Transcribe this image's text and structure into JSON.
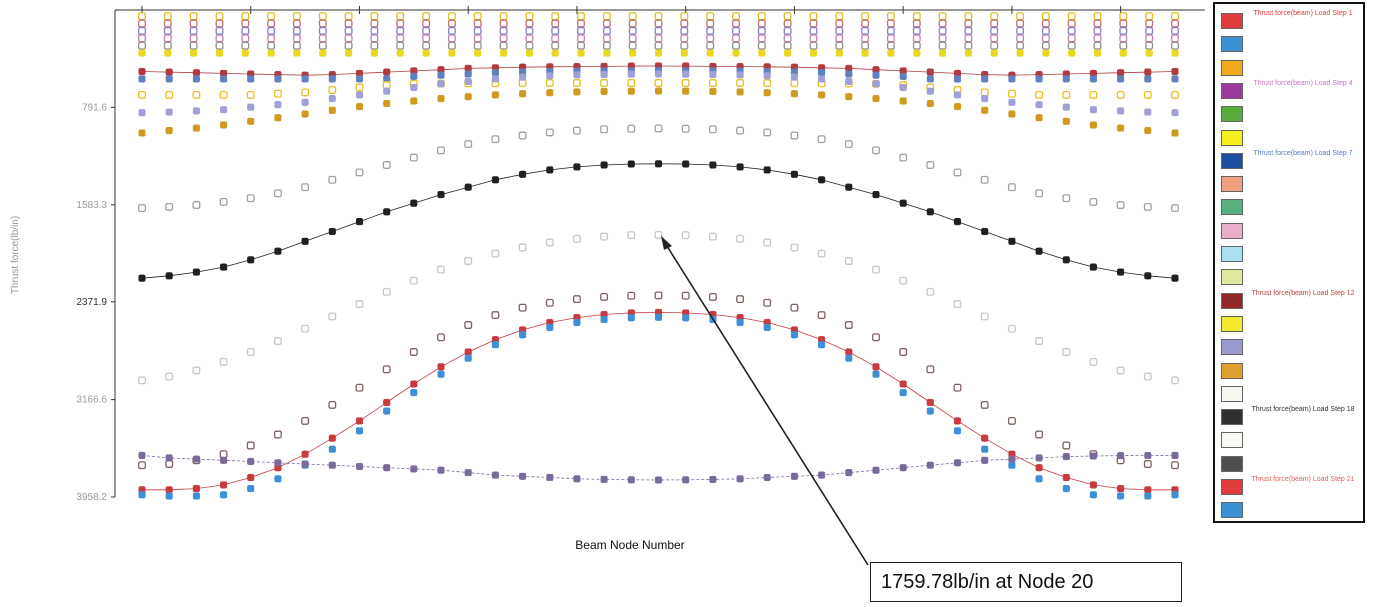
{
  "chart_data": {
    "type": "scatter",
    "title": "",
    "xlabel": "Beam Node Number",
    "ylabel": "Thrust force(lb/in)",
    "x_range": [
      1,
      39
    ],
    "y_range": [
      0,
      3958.2
    ],
    "y_inverted": true,
    "yticks": [
      "791.6",
      "1583.3",
      "2371.9",
      "3166.6",
      "3958.2"
    ],
    "ytick_values": [
      791.6,
      1583.3,
      2371.9,
      3166.6,
      3958.2
    ],
    "xtick_marks": [
      1,
      5,
      9,
      13,
      17,
      21,
      25,
      29,
      33,
      37
    ],
    "grid": false,
    "legend_placement": "right",
    "annotation": {
      "text": "1759.78lb/in at Node 20",
      "node": 20,
      "value": 1759.78
    },
    "legend": [
      {
        "label": "Thrust force(beam) Load Step 1",
        "color": "#e03a3e",
        "text_color": "#e03a3e"
      },
      {
        "label": "",
        "color": "#3d8fd6",
        "text_color": "#7ab6e8"
      },
      {
        "label": "",
        "color": "#f2a81d",
        "text_color": "#f2c060"
      },
      {
        "label": "Thrust force(beam) Load Step 4",
        "color": "#9c3a9c",
        "text_color": "#d070c8"
      },
      {
        "label": "",
        "color": "#5aaa3c",
        "text_color": "#a0d080"
      },
      {
        "label": "",
        "color": "#f5f020",
        "text_color": "#e0d840"
      },
      {
        "label": "Thrust force(beam) Load Step 7",
        "color": "#1d4ea0",
        "text_color": "#5a7ac8"
      },
      {
        "label": "",
        "color": "#f0a080",
        "text_color": "#f0c0b0"
      },
      {
        "label": "",
        "color": "#58b080",
        "text_color": "#a0d0b0"
      },
      {
        "label": "",
        "color": "#e8b0c8",
        "text_color": "#e8c0d0"
      },
      {
        "label": "",
        "color": "#a8e0f0",
        "text_color": "#c0e8f0"
      },
      {
        "label": "",
        "color": "#e0e8a0",
        "text_color": "#e0e0a0"
      },
      {
        "label": "Thrust force(beam) Load Step 12",
        "color": "#902828",
        "text_color": "#c04040"
      },
      {
        "label": "",
        "color": "#f5e830",
        "text_color": "#e8d850"
      },
      {
        "label": "",
        "color": "#9a9ad0",
        "text_color": "#b0b0d8"
      },
      {
        "label": "",
        "color": "#e0a030",
        "text_color": "#e8b860"
      },
      {
        "label": "",
        "color": "#f8f8f0",
        "text_color": "#d0d0c8"
      },
      {
        "label": "Thrust force(beam) Load Step 18",
        "color": "#303030",
        "text_color": "#303030"
      },
      {
        "label": "",
        "color": "#fafaf4",
        "text_color": "#d0d0c8"
      },
      {
        "label": "",
        "color": "#505050",
        "text_color": "#909090"
      },
      {
        "label": "Thrust force(beam) Load Step 21",
        "color": "#e03a3e",
        "text_color": "#e06060"
      },
      {
        "label": "",
        "color": "#3d8fd6",
        "text_color": "#7ab6e8"
      }
    ],
    "series": [
      {
        "color": "#d8c020",
        "filled": false,
        "line": false,
        "values": [
          50,
          50,
          50,
          50,
          50,
          50,
          50,
          50,
          50,
          50,
          50,
          50,
          50,
          50,
          50,
          50,
          50,
          50,
          50,
          50,
          50,
          50,
          50,
          50,
          50,
          50,
          50,
          50,
          50,
          50,
          50,
          50,
          50,
          50,
          50,
          50,
          50,
          50,
          50,
          50,
          50
        ]
      },
      {
        "color": "#c87070",
        "filled": false,
        "line": false,
        "values": [
          110,
          110,
          110,
          110,
          110,
          110,
          110,
          110,
          110,
          110,
          110,
          110,
          110,
          110,
          110,
          110,
          110,
          110,
          110,
          110,
          110,
          110,
          110,
          110,
          110,
          110,
          110,
          110,
          110,
          110,
          110,
          110,
          110,
          110,
          110,
          110,
          110,
          110,
          110,
          110,
          110
        ]
      },
      {
        "color": "#8080c8",
        "filled": false,
        "line": false,
        "values": [
          170,
          170,
          170,
          170,
          170,
          170,
          170,
          170,
          170,
          170,
          170,
          170,
          170,
          170,
          170,
          170,
          170,
          170,
          170,
          170,
          170,
          170,
          170,
          170,
          170,
          170,
          170,
          170,
          170,
          170,
          170,
          170,
          170,
          170,
          170,
          170,
          170,
          170,
          170,
          170,
          170
        ]
      },
      {
        "color": "#c080b0",
        "filled": false,
        "line": false,
        "values": [
          230,
          230,
          230,
          230,
          230,
          230,
          230,
          230,
          230,
          230,
          230,
          230,
          230,
          230,
          230,
          230,
          230,
          230,
          230,
          230,
          230,
          230,
          230,
          230,
          230,
          230,
          230,
          230,
          230,
          230,
          230,
          230,
          230,
          230,
          230,
          230,
          230,
          230,
          230,
          230,
          230
        ]
      },
      {
        "color": "#909090",
        "filled": false,
        "line": false,
        "values": [
          290,
          290,
          290,
          290,
          290,
          290,
          290,
          290,
          290,
          290,
          290,
          290,
          290,
          290,
          290,
          290,
          290,
          290,
          290,
          290,
          290,
          290,
          290,
          290,
          290,
          290,
          290,
          290,
          290,
          290,
          290,
          290,
          290,
          290,
          290,
          290,
          290,
          290,
          290,
          290,
          290
        ]
      },
      {
        "color": "#e8d820",
        "filled": true,
        "line": false,
        "values": [
          350,
          350,
          350,
          350,
          350,
          350,
          350,
          350,
          350,
          350,
          350,
          350,
          350,
          350,
          350,
          350,
          350,
          350,
          350,
          350,
          350,
          350,
          350,
          350,
          350,
          350,
          350,
          350,
          350,
          350,
          350,
          350,
          350,
          350,
          350,
          350,
          350,
          350,
          350,
          350,
          350
        ]
      },
      {
        "color": "#b03a3e",
        "filled": true,
        "line": true,
        "values": [
          500,
          505,
          510,
          515,
          520,
          525,
          530,
          525,
          515,
          505,
          495,
          485,
          475,
          470,
          465,
          462,
          460,
          458,
          456,
          455,
          456,
          458,
          460,
          462,
          465,
          470,
          475,
          485,
          495,
          505,
          515,
          525,
          530,
          525,
          520,
          515,
          510,
          505,
          500
        ]
      },
      {
        "color": "#6080c0",
        "filled": true,
        "line": false,
        "values": [
          560,
          560,
          560,
          560,
          560,
          560,
          560,
          560,
          560,
          560,
          540,
          530,
          520,
          510,
          505,
          500,
          498,
          496,
          495,
          494,
          495,
          496,
          498,
          500,
          505,
          510,
          520,
          530,
          540,
          560,
          560,
          560,
          560,
          560,
          560,
          560,
          560,
          560,
          560
        ]
      },
      {
        "color": "#e8c020",
        "filled": false,
        "line": false,
        "values": [
          690,
          690,
          690,
          690,
          690,
          680,
          670,
          650,
          630,
          610,
          600,
          598,
          596,
          595,
          594,
          593,
          593,
          593,
          593,
          593,
          593,
          593,
          593,
          594,
          595,
          596,
          598,
          600,
          610,
          630,
          650,
          670,
          680,
          690,
          690,
          690,
          690,
          690,
          690
        ]
      },
      {
        "color": "#a0a0d8",
        "filled": true,
        "line": false,
        "values": [
          835,
          830,
          820,
          810,
          790,
          770,
          750,
          720,
          690,
          660,
          630,
          600,
          580,
          560,
          545,
          535,
          528,
          524,
          522,
          520,
          522,
          524,
          528,
          535,
          545,
          560,
          580,
          600,
          630,
          660,
          690,
          720,
          750,
          770,
          790,
          810,
          820,
          830,
          835
        ]
      },
      {
        "color": "#d09a20",
        "filled": true,
        "line": false,
        "values": [
          1000,
          980,
          960,
          935,
          905,
          875,
          845,
          815,
          785,
          760,
          740,
          720,
          705,
          690,
          680,
          672,
          666,
          662,
          660,
          658,
          660,
          662,
          666,
          672,
          680,
          690,
          705,
          720,
          740,
          760,
          785,
          815,
          845,
          875,
          905,
          935,
          960,
          980,
          1000
        ]
      },
      {
        "color": "#a0a0a0",
        "filled": false,
        "line": false,
        "values": [
          1610,
          1600,
          1585,
          1560,
          1530,
          1490,
          1440,
          1380,
          1320,
          1260,
          1200,
          1140,
          1090,
          1050,
          1020,
          995,
          980,
          970,
          965,
          962,
          965,
          970,
          980,
          995,
          1020,
          1050,
          1090,
          1140,
          1200,
          1260,
          1320,
          1380,
          1440,
          1490,
          1530,
          1560,
          1585,
          1600,
          1610
        ]
      },
      {
        "color": "#202020",
        "filled": true,
        "line": true,
        "values": [
          2180,
          2160,
          2130,
          2090,
          2030,
          1960,
          1880,
          1800,
          1720,
          1640,
          1570,
          1500,
          1440,
          1380,
          1335,
          1300,
          1275,
          1260,
          1252,
          1250,
          1252,
          1260,
          1275,
          1300,
          1335,
          1380,
          1440,
          1500,
          1570,
          1640,
          1720,
          1800,
          1880,
          1960,
          2030,
          2090,
          2130,
          2160,
          2180
        ]
      },
      {
        "color": "#c8c8c0",
        "filled": false,
        "line": false,
        "values": [
          3010,
          2980,
          2930,
          2860,
          2780,
          2690,
          2590,
          2490,
          2390,
          2290,
          2200,
          2110,
          2040,
          1980,
          1930,
          1890,
          1860,
          1842,
          1830,
          1828,
          1830,
          1842,
          1860,
          1890,
          1930,
          1980,
          2040,
          2110,
          2200,
          2290,
          2390,
          2490,
          2590,
          2690,
          2780,
          2860,
          2930,
          2980,
          3010
        ]
      },
      {
        "color": "#806060",
        "filled": false,
        "line": false,
        "values": [
          3700,
          3690,
          3660,
          3610,
          3540,
          3450,
          3340,
          3210,
          3070,
          2920,
          2780,
          2660,
          2560,
          2480,
          2420,
          2380,
          2350,
          2332,
          2322,
          2320,
          2322,
          2332,
          2350,
          2380,
          2420,
          2480,
          2560,
          2660,
          2780,
          2920,
          3070,
          3210,
          3340,
          3450,
          3540,
          3610,
          3660,
          3690,
          3700
        ]
      },
      {
        "color": "#c83a3e",
        "filled": true,
        "line": true,
        "values": [
          3900,
          3900,
          3890,
          3860,
          3800,
          3720,
          3610,
          3480,
          3340,
          3190,
          3040,
          2900,
          2780,
          2680,
          2600,
          2540,
          2500,
          2475,
          2462,
          2458,
          2462,
          2475,
          2500,
          2540,
          2600,
          2680,
          2780,
          2900,
          3040,
          3190,
          3340,
          3480,
          3610,
          3720,
          3800,
          3860,
          3890,
          3900,
          3900
        ]
      },
      {
        "color": "#3d8fd6",
        "filled": true,
        "line": false,
        "values": [
          3940,
          3950,
          3950,
          3940,
          3890,
          3810,
          3700,
          3570,
          3420,
          3260,
          3110,
          2960,
          2830,
          2720,
          2640,
          2580,
          2540,
          2515,
          2502,
          2498,
          2502,
          2515,
          2540,
          2580,
          2640,
          2720,
          2830,
          2960,
          3110,
          3260,
          3420,
          3570,
          3700,
          3810,
          3890,
          3940,
          3950,
          3950,
          3940
        ]
      },
      {
        "color": "#7a6a9a",
        "filled": true,
        "line": true,
        "values": [
          3620,
          3640,
          3650,
          3660,
          3670,
          3680,
          3690,
          3700,
          3710,
          3720,
          3730,
          3740,
          3760,
          3780,
          3790,
          3800,
          3810,
          3815,
          3818,
          3820,
          3818,
          3815,
          3810,
          3800,
          3790,
          3780,
          3760,
          3740,
          3720,
          3700,
          3680,
          3660,
          3650,
          3640,
          3630,
          3625,
          3622,
          3621,
          3620
        ]
      }
    ]
  }
}
